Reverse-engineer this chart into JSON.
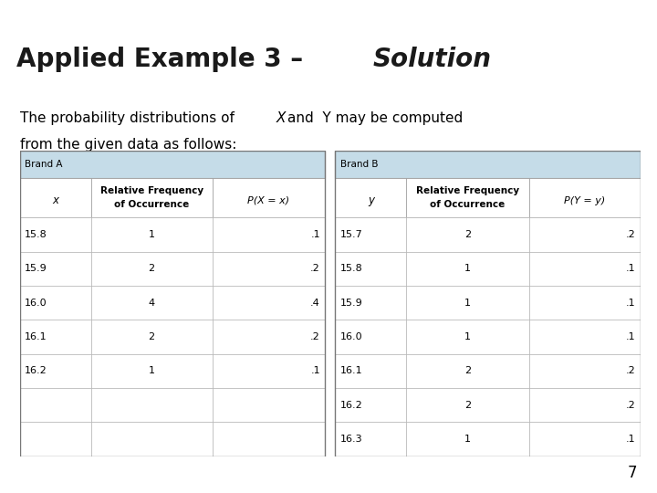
{
  "title_regular": "Applied Example 3 – ",
  "title_italic": "Solution",
  "title_bg_color": "#b8b49e",
  "title_bar_color": "#3a8080",
  "body_line1_pre": "The probability distributions of ",
  "body_line1_X": "X",
  "body_line1_post": "and  Y may be computed",
  "body_line2": "from the given data as follows:",
  "page_number": "7",
  "bg_color": "#ffffff",
  "brand_a_header": "Brand A",
  "brand_b_header": "Brand B",
  "brand_header_bg": "#c5dce8",
  "col_header_bg": "#ffffff",
  "data_row_bg": "#ffffff",
  "table_border_color": "#aaaaaa",
  "font_size_title": 20,
  "font_size_body": 11,
  "font_size_table_header": 8,
  "font_size_table_data": 8,
  "brand_a_data": [
    [
      "15.8",
      "1",
      ".1"
    ],
    [
      "15.9",
      "2",
      ".2"
    ],
    [
      "16.0",
      "4",
      ".4"
    ],
    [
      "16.1",
      "2",
      ".2"
    ],
    [
      "16.2",
      "1",
      ".1"
    ]
  ],
  "brand_b_data": [
    [
      "15.7",
      "2",
      ".2"
    ],
    [
      "15.8",
      "1",
      ".1"
    ],
    [
      "15.9",
      "1",
      ".1"
    ],
    [
      "16.0",
      "1",
      ".1"
    ],
    [
      "16.1",
      "2",
      ".2"
    ],
    [
      "16.2",
      "2",
      ".2"
    ],
    [
      "16.3",
      "1",
      ".1"
    ]
  ]
}
